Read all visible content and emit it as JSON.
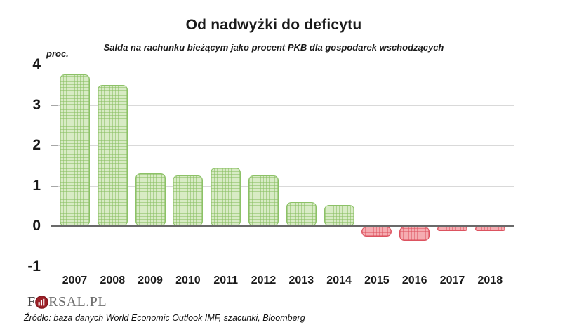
{
  "title": "Od nadwyżki do deficytu",
  "subtitle": "Salda na rachunku bieżącym jako procent PKB dla gospodarek wschodzących",
  "unit_label": "proc.",
  "source": "Źródło: baza danych World Economic Outlook IMF, szacunki, Bloomberg",
  "logo": {
    "prefix": "F",
    "suffix": "RSAL.PL"
  },
  "colors": {
    "positive_fill": "#d8ebc5",
    "positive_hatch": "#88be60",
    "positive_border": "#8cc167",
    "negative_fill": "#f5acb1",
    "negative_hatch": "#db4b5a",
    "negative_border": "#dc5360",
    "gridline": "#d9d9d9",
    "zero_axis": "#696969",
    "logo_red": "#9b1f26",
    "text": "#1a1a1a"
  },
  "chart_data": {
    "type": "bar",
    "title": "Od nadwyżki do deficytu",
    "subtitle": "Salda na rachunku bieżącym jako procent PKB dla gospodarek wschodzących",
    "ylabel": "proc.",
    "categories": [
      "2007",
      "2008",
      "2009",
      "2010",
      "2011",
      "2012",
      "2013",
      "2014",
      "2015",
      "2016",
      "2017",
      "2018"
    ],
    "values": [
      3.75,
      3.5,
      1.3,
      1.25,
      1.45,
      1.25,
      0.6,
      0.52,
      -0.25,
      -0.35,
      -0.1,
      -0.1
    ],
    "ylim": [
      -1,
      4
    ],
    "yticks": [
      4,
      3,
      2,
      1,
      0,
      -1
    ],
    "grid": "horizontal",
    "legend": "none"
  }
}
